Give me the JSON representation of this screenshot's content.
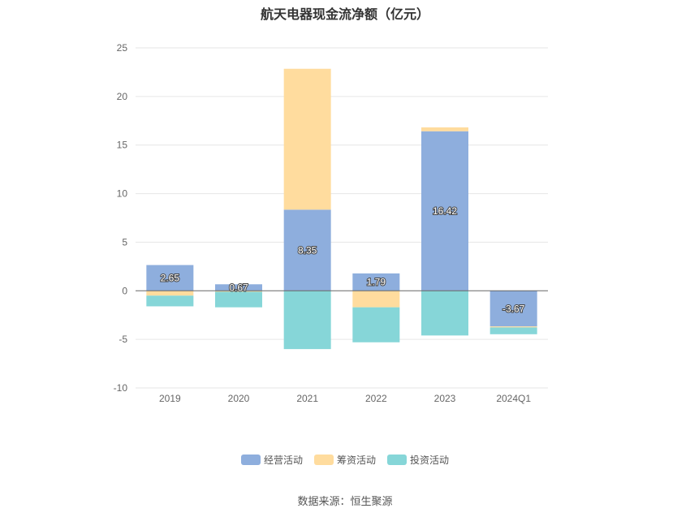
{
  "chart_data": {
    "type": "bar",
    "stacked": true,
    "title": "航天电器现金流净额（亿元）",
    "categories": [
      "2019",
      "2020",
      "2021",
      "2022",
      "2023",
      "2024Q1"
    ],
    "series": [
      {
        "name": "经营活动",
        "values": [
          2.65,
          0.67,
          8.35,
          1.79,
          16.42,
          -3.67
        ],
        "color": "#8eaedd"
      },
      {
        "name": "筹资活动",
        "values": [
          -0.5,
          -0.1,
          14.5,
          -1.7,
          0.4,
          -0.1
        ],
        "color": "#ffdc9e"
      },
      {
        "name": "投资活动",
        "values": [
          -1.1,
          -1.6,
          -6.0,
          -3.6,
          -4.6,
          -0.7
        ],
        "color": "#86d6d8"
      }
    ],
    "data_labels": [
      "2.65",
      "0.67",
      "8.35",
      "1.79",
      "16.42",
      "-3.67"
    ],
    "y_ticks": [
      25,
      20,
      15,
      10,
      5,
      0,
      -5,
      -10
    ],
    "ylim": [
      -10,
      25
    ],
    "grid": true,
    "legend_position": "bottom"
  },
  "source_text": "数据来源：恒生聚源"
}
